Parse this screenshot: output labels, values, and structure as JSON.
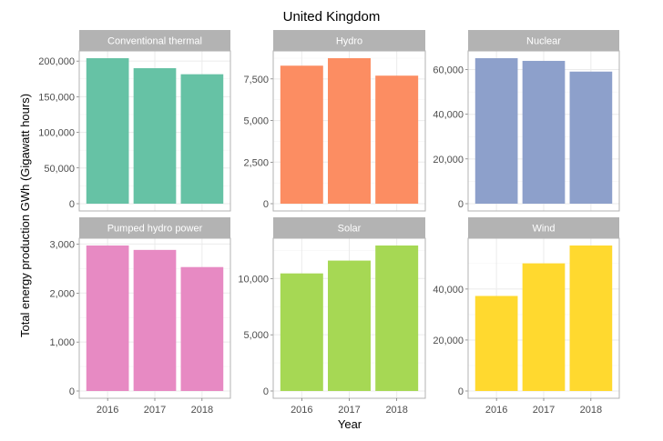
{
  "chart_data": {
    "type": "bar",
    "title": "United Kingdom",
    "xlabel": "Year",
    "ylabel": "Total energy production GWh (Gigawatt hours)",
    "categories": [
      "2016",
      "2017",
      "2018"
    ],
    "grid": true,
    "legend": "none",
    "facets": [
      {
        "name": "Conventional thermal",
        "color": "#66C2A5",
        "values": [
          204000,
          190000,
          181500
        ],
        "ticks": [
          0,
          50000,
          100000,
          150000,
          200000
        ],
        "tick_labels": [
          "0",
          "50,000",
          "100,000",
          "150,000",
          "200,000"
        ]
      },
      {
        "name": "Hydro",
        "color": "#FC8D62",
        "values": [
          8300,
          8750,
          7700
        ],
        "ticks": [
          0,
          2500,
          5000,
          7500
        ],
        "tick_labels": [
          "0",
          "2,500",
          "5,000",
          "7,500"
        ]
      },
      {
        "name": "Nuclear",
        "color": "#8DA0CB",
        "values": [
          65100,
          63900,
          59100
        ],
        "ticks": [
          0,
          20000,
          40000,
          60000
        ],
        "tick_labels": [
          "0",
          "20,000",
          "40,000",
          "60,000"
        ]
      },
      {
        "name": "Pumped hydro power",
        "color": "#E78AC3",
        "values": [
          2970,
          2880,
          2530
        ],
        "ticks": [
          0,
          1000,
          2000,
          3000
        ],
        "tick_labels": [
          "0",
          "1,000",
          "2,000",
          "3,000"
        ]
      },
      {
        "name": "Solar",
        "color": "#A6D854",
        "values": [
          10450,
          11590,
          12930
        ],
        "ticks": [
          0,
          5000,
          10000
        ],
        "tick_labels": [
          "0",
          "5,000",
          "10,000"
        ]
      },
      {
        "name": "Wind",
        "color": "#FFD92F",
        "values": [
          37300,
          50100,
          57100
        ],
        "ticks": [
          0,
          20000,
          40000
        ],
        "tick_labels": [
          "0",
          "20,000",
          "40,000"
        ]
      }
    ]
  }
}
